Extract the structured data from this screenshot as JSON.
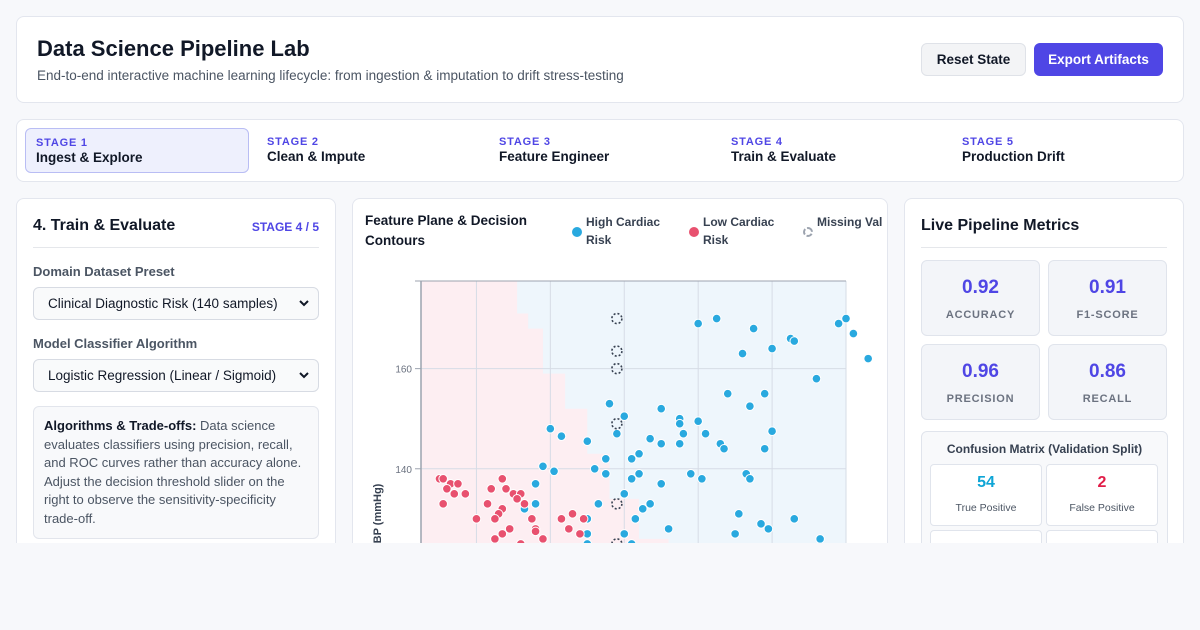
{
  "header": {
    "title": "Data Science Pipeline Lab",
    "subtitle": "End-to-end interactive machine learning lifecycle: from ingestion & imputation to drift stress-testing",
    "reset_label": "Reset State",
    "export_label": "Export Artifacts"
  },
  "stages": [
    {
      "num": "STAGE 1",
      "name": "Ingest & Explore",
      "active": true
    },
    {
      "num": "STAGE 2",
      "name": "Clean & Impute",
      "active": false
    },
    {
      "num": "STAGE 3",
      "name": "Feature Engineer",
      "active": false
    },
    {
      "num": "STAGE 4",
      "name": "Train & Evaluate",
      "active": false
    },
    {
      "num": "STAGE 5",
      "name": "Production Drift",
      "active": false
    }
  ],
  "left_panel": {
    "title": "4. Train & Evaluate",
    "step": "STAGE 4 / 5",
    "dataset_label": "Domain Dataset Preset",
    "dataset_value": "Clinical Diagnostic Risk (140 samples)",
    "model_label": "Model Classifier Algorithm",
    "model_value": "Logistic Regression (Linear / Sigmoid)",
    "info_heading": "Algorithms & Trade-offs:",
    "info_text": " Data science evaluates classifiers using precision, recall, and ROC curves rather than accuracy alone. Adjust the decision threshold slider on the right to observe the sensitivity-specificity trade-off."
  },
  "chart": {
    "title": "Feature Plane & Decision Contours",
    "legend": {
      "high": "High Cardiac Risk",
      "low": "Low Cardiac Risk",
      "missing": "Missing Val"
    },
    "colors": {
      "high": "#29a9df",
      "low": "#e8516f",
      "missing_stroke": "#374151"
    }
  },
  "metrics": {
    "title": "Live Pipeline Metrics",
    "items": [
      {
        "value": "0.92",
        "label": "ACCURACY"
      },
      {
        "value": "0.91",
        "label": "F1-SCORE"
      },
      {
        "value": "0.96",
        "label": "PRECISION"
      },
      {
        "value": "0.86",
        "label": "RECALL"
      }
    ],
    "confusion_title": "Confusion Matrix (Validation Split)",
    "confusion": [
      {
        "value": "54",
        "label": "True Positive",
        "color": "#0ea5d6"
      },
      {
        "value": "2",
        "label": "False Positive",
        "color": "#e11d48"
      }
    ]
  },
  "chart_data": {
    "type": "scatter",
    "title": "Feature Plane & Decision Contours",
    "ylabel": "Resting SBP (mmHg)",
    "xlabel": "",
    "y_ticks": [
      140,
      160
    ],
    "ylim": [
      110,
      177.5
    ],
    "grid": true,
    "legend_position": "top-right",
    "series": [
      {
        "name": "High Cardiac Risk",
        "points": [
          [
            60,
            169
          ],
          [
            65,
            170
          ],
          [
            75,
            168
          ],
          [
            85,
            166
          ],
          [
            86,
            165.5
          ],
          [
            80,
            164
          ],
          [
            100,
            170
          ],
          [
            98,
            169
          ],
          [
            102,
            167
          ],
          [
            72,
            163
          ],
          [
            106,
            162
          ],
          [
            92,
            158
          ],
          [
            78,
            155
          ],
          [
            68,
            155
          ],
          [
            74,
            152.5
          ],
          [
            50,
            152
          ],
          [
            55,
            150
          ],
          [
            55,
            149
          ],
          [
            60,
            149.5
          ],
          [
            36,
            153
          ],
          [
            40,
            150.5
          ],
          [
            38,
            147
          ],
          [
            56,
            147
          ],
          [
            62,
            147
          ],
          [
            50,
            145
          ],
          [
            47,
            146
          ],
          [
            55,
            145
          ],
          [
            66,
            145
          ],
          [
            44,
            143
          ],
          [
            42,
            142
          ],
          [
            80,
            147.5
          ],
          [
            78,
            144
          ],
          [
            67,
            144
          ],
          [
            20,
            148
          ],
          [
            30,
            145.5
          ],
          [
            23,
            146.5
          ],
          [
            35,
            142
          ],
          [
            32,
            140
          ],
          [
            21,
            139.5
          ],
          [
            35,
            139
          ],
          [
            44,
            139
          ],
          [
            42,
            138
          ],
          [
            58,
            139
          ],
          [
            61,
            138
          ],
          [
            73,
            139
          ],
          [
            74,
            138
          ],
          [
            50,
            137
          ],
          [
            40,
            135
          ],
          [
            33,
            133
          ],
          [
            47,
            133
          ],
          [
            45,
            132
          ],
          [
            71,
            131
          ],
          [
            86,
            130
          ],
          [
            77,
            129
          ],
          [
            79,
            128
          ],
          [
            93,
            126
          ],
          [
            70,
            127
          ],
          [
            30,
            125
          ],
          [
            30,
            122
          ],
          [
            42,
            125
          ],
          [
            52,
            128
          ],
          [
            40,
            123
          ],
          [
            55,
            123
          ],
          [
            35,
            121
          ],
          [
            16,
            133
          ],
          [
            13,
            132
          ],
          [
            16,
            137
          ],
          [
            30,
            130
          ],
          [
            30,
            127
          ],
          [
            43,
            130
          ],
          [
            40,
            127
          ],
          [
            43,
            122
          ],
          [
            58,
            121
          ],
          [
            60,
            120
          ],
          [
            90,
            120
          ],
          [
            86,
            119
          ],
          [
            89,
            118
          ],
          [
            18,
            140.5
          ],
          [
            20,
            121.5
          ]
        ]
      },
      {
        "name": "Low Cardiac Risk",
        "points": [
          [
            -10,
            138
          ],
          [
            -9,
            138
          ],
          [
            -7,
            137
          ],
          [
            -5,
            137
          ],
          [
            -8,
            136
          ],
          [
            -6,
            135
          ],
          [
            -3,
            135
          ],
          [
            4,
            136
          ],
          [
            7,
            138
          ],
          [
            8,
            136
          ],
          [
            10,
            135
          ],
          [
            12,
            135
          ],
          [
            11,
            134
          ],
          [
            13,
            133
          ],
          [
            3,
            133
          ],
          [
            -9,
            133
          ],
          [
            0,
            130
          ],
          [
            7,
            132
          ],
          [
            6,
            131
          ],
          [
            5,
            130
          ],
          [
            15,
            130
          ],
          [
            16,
            128
          ],
          [
            16,
            127.5
          ],
          [
            18,
            126
          ],
          [
            9,
            128
          ],
          [
            7,
            127
          ],
          [
            5,
            126
          ],
          [
            12,
            125
          ],
          [
            14,
            124
          ],
          [
            9,
            124
          ],
          [
            22,
            124
          ],
          [
            25,
            128
          ],
          [
            28,
            127
          ],
          [
            29,
            130
          ],
          [
            26,
            131
          ],
          [
            23,
            130
          ],
          [
            28,
            124
          ],
          [
            30,
            124
          ],
          [
            33,
            123
          ],
          [
            22,
            120
          ],
          [
            18,
            122
          ],
          [
            19,
            119
          ],
          [
            20,
            118
          ],
          [
            27,
            118
          ],
          [
            8,
            120
          ],
          [
            25,
            116
          ],
          [
            23,
            117
          ],
          [
            31,
            119
          ],
          [
            35,
            118
          ],
          [
            32,
            116
          ],
          [
            38,
            119
          ],
          [
            39,
            115
          ],
          [
            40,
            117
          ],
          [
            30,
            115
          ],
          [
            18,
            116
          ],
          [
            10,
            116
          ],
          [
            14,
            121
          ]
        ]
      },
      {
        "name": "Missing Val",
        "points": [
          [
            38,
            170
          ],
          [
            38,
            163.5
          ],
          [
            38,
            160
          ],
          [
            38,
            149
          ],
          [
            38,
            133
          ],
          [
            38,
            125
          ]
        ]
      }
    ]
  }
}
